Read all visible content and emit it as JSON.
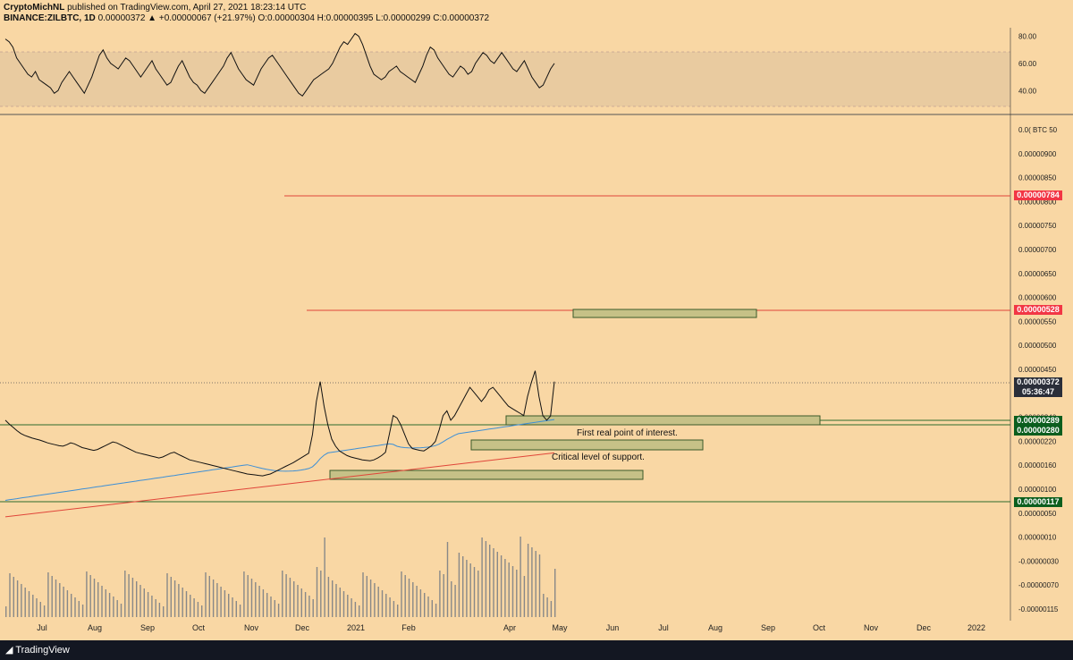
{
  "header": {
    "line1_user": "CryptoMichNL",
    "line1_rest": " published on TradingView.com, April 27, 2021 18:23:14 UTC",
    "line2_symbol": "BINANCE:ZILBTC, 1D",
    "line2_rest": "0.00000372 ▲ +0.00000067 (+21.97%) O:0.00000304 H:0.00000395 L:0.00000299 C:0.00000372"
  },
  "footer": {
    "brand": "TradingView"
  },
  "chart_data": [
    {
      "type": "line",
      "name": "RSI",
      "yticks": [
        "80.00",
        "60.00",
        "40.00"
      ],
      "ylim": [
        25,
        85
      ],
      "band": [
        30,
        70
      ],
      "values": [
        78,
        76,
        72,
        64,
        60,
        56,
        52,
        50,
        54,
        48,
        46,
        44,
        42,
        38,
        40,
        46,
        50,
        54,
        50,
        46,
        42,
        38,
        44,
        50,
        58,
        66,
        70,
        64,
        60,
        58,
        56,
        60,
        64,
        62,
        58,
        54,
        50,
        54,
        58,
        62,
        56,
        52,
        48,
        44,
        46,
        52,
        58,
        62,
        56,
        50,
        46,
        44,
        40,
        38,
        42,
        46,
        50,
        54,
        58,
        64,
        68,
        62,
        56,
        52,
        48,
        46,
        44,
        50,
        56,
        60,
        64,
        66,
        62,
        58,
        54,
        50,
        46,
        42,
        38,
        36,
        40,
        44,
        48,
        50,
        52,
        54,
        56,
        60,
        66,
        72,
        76,
        74,
        78,
        82,
        80,
        74,
        66,
        58,
        52,
        50,
        48,
        50,
        54,
        56,
        58,
        54,
        52,
        50,
        48,
        46,
        52,
        58,
        66,
        72,
        70,
        64,
        60,
        56,
        52,
        50,
        54,
        58,
        56,
        52,
        54,
        60,
        64,
        68,
        66,
        62,
        60,
        64,
        68,
        64,
        60,
        56,
        54,
        58,
        62,
        56,
        50,
        46,
        42,
        44,
        50,
        56,
        60
      ]
    },
    {
      "type": "line",
      "name": "ZILBTC",
      "xticks": [
        "Jul",
        "Aug",
        "Sep",
        "Oct",
        "Nov",
        "Dec",
        "2021",
        "Feb",
        "Apr",
        "May",
        "Jun",
        "Jul",
        "Aug",
        "Sep",
        "Oct",
        "Nov",
        "Dec",
        "2022"
      ],
      "yticks": [
        "0.0( BTC 50",
        "0.00000900",
        "0.00000850",
        "0.00000800",
        "0.00000750",
        "0.00000700",
        "0.00000650",
        "0.00000600",
        "0.00000550",
        "0.00000500",
        "0.00000450",
        "0.00000400",
        "0.00000340",
        "0.00000220",
        "0.00000160",
        "0.00000100",
        "0.00000050",
        "0.00000010",
        "-0.00000030",
        "-0.00000070",
        "-0.00000115"
      ],
      "price_labels": [
        {
          "value": "0.00000784",
          "color": "#f23645"
        },
        {
          "value": "0.00000528",
          "color": "#f23645"
        },
        {
          "value": "0.00000372",
          "color": "#2a2e39"
        },
        {
          "value": "05:36:47",
          "color": "#2a2e39"
        },
        {
          "value": "0.00000289",
          "color": "#0b5e1e"
        },
        {
          "value": "0.00000280",
          "color": "#0b5e1e"
        },
        {
          "value": "0.00000117",
          "color": "#0b5e1e"
        }
      ],
      "annotations": [
        {
          "text": "First real point of interest."
        },
        {
          "text": "Critical level of support."
        }
      ],
      "close": [
        290,
        282,
        275,
        268,
        262,
        258,
        255,
        252,
        250,
        248,
        245,
        242,
        240,
        238,
        236,
        235,
        238,
        242,
        240,
        236,
        232,
        230,
        228,
        226,
        228,
        232,
        236,
        240,
        244,
        242,
        238,
        234,
        230,
        226,
        222,
        220,
        218,
        216,
        214,
        212,
        210,
        212,
        216,
        220,
        222,
        218,
        214,
        210,
        206,
        204,
        202,
        200,
        198,
        196,
        194,
        192,
        190,
        188,
        186,
        184,
        182,
        180,
        178,
        176,
        175,
        174,
        173,
        172,
        174,
        176,
        180,
        184,
        188,
        192,
        196,
        200,
        205,
        210,
        215,
        220,
        260,
        330,
        372,
        320,
        280,
        250,
        235,
        225,
        220,
        215,
        212,
        210,
        208,
        206,
        205,
        204,
        206,
        210,
        215,
        222,
        260,
        300,
        295,
        280,
        260,
        240,
        230,
        228,
        226,
        225,
        230,
        236,
        245,
        270,
        300,
        310,
        290,
        300,
        315,
        330,
        345,
        360,
        350,
        340,
        330,
        340,
        355,
        360,
        350,
        340,
        330,
        320,
        315,
        310,
        305,
        300,
        340,
        370,
        395,
        340,
        300,
        290,
        299,
        372
      ]
    }
  ]
}
